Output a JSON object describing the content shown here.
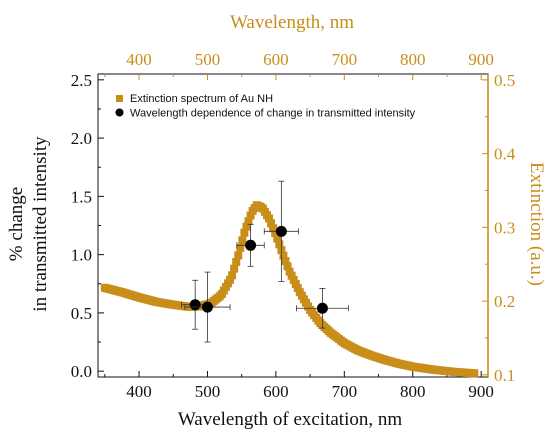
{
  "colors": {
    "extinction": "#c98e1a",
    "points": "#000000",
    "axis_left": "#111111",
    "axis_right": "#c98e1a"
  },
  "chart_data": {
    "type": "scatter",
    "x_axis_bottom": {
      "label": "Wavelength of excitation, nm",
      "range": [
        340,
        910
      ],
      "ticks": [
        400,
        500,
        600,
        700,
        800,
        900
      ],
      "tick_labels": [
        "400",
        "500",
        "600",
        "700",
        "800",
        "900"
      ]
    },
    "x_axis_top": {
      "label": "Wavelength, nm",
      "range": [
        340,
        910
      ],
      "ticks": [
        400,
        500,
        600,
        700,
        800,
        900
      ],
      "tick_labels": [
        "400",
        "500",
        "600",
        "700",
        "800",
        "900"
      ]
    },
    "y_axis_left": {
      "label_line1": "% change",
      "label_line2": "in transmitted intensity",
      "range": [
        -0.05,
        2.55
      ],
      "ticks": [
        0.0,
        0.5,
        1.0,
        1.5,
        2.0,
        2.5
      ],
      "tick_labels": [
        "0.0",
        "0.5",
        "1.0",
        "1.5",
        "2.0",
        "2.5"
      ]
    },
    "y_axis_right": {
      "label": "Extinction (a.u.)",
      "range": [
        0.097,
        0.508
      ],
      "ticks": [
        0.1,
        0.2,
        0.3,
        0.4,
        0.5
      ],
      "tick_labels": [
        "0.1",
        "0.2",
        "0.3",
        "0.4",
        "0.5"
      ]
    },
    "legend": {
      "position": "top-left",
      "entries": [
        "Extinction spectrum of Au NH",
        "Wavelength dependence of change in transmitted intensity"
      ]
    },
    "series": [
      {
        "name": "Extinction spectrum of Au NH",
        "axis": "right",
        "marker": "square",
        "x": [
          350,
          375,
          400,
          425,
          450,
          475,
          490,
          505,
          520,
          535,
          545,
          555,
          565,
          572,
          580,
          590,
          600,
          610,
          620,
          635,
          650,
          665,
          680,
          700,
          720,
          740,
          760,
          780,
          800,
          830,
          860,
          890
        ],
        "y": [
          0.218,
          0.212,
          0.205,
          0.199,
          0.195,
          0.192,
          0.193,
          0.197,
          0.208,
          0.232,
          0.262,
          0.296,
          0.321,
          0.33,
          0.327,
          0.312,
          0.29,
          0.264,
          0.24,
          0.212,
          0.188,
          0.17,
          0.157,
          0.143,
          0.133,
          0.126,
          0.12,
          0.115,
          0.111,
          0.107,
          0.104,
          0.102
        ]
      },
      {
        "name": "Wavelength dependence of change in transmitted intensity",
        "axis": "left",
        "marker": "circle",
        "x": [
          482,
          500,
          563,
          608,
          668
        ],
        "y": [
          0.57,
          0.55,
          1.08,
          1.2,
          0.54
        ],
        "x_err": [
          20,
          33,
          20,
          25,
          38
        ],
        "y_err": [
          0.21,
          0.3,
          0.18,
          0.43,
          0.17
        ]
      }
    ]
  }
}
